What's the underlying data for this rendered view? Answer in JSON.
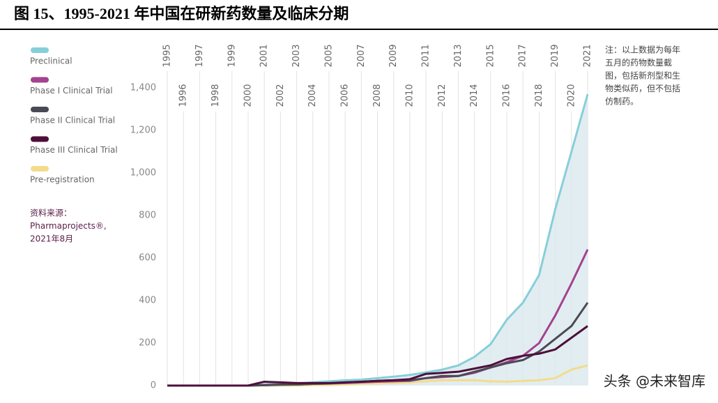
{
  "chart_data": {
    "type": "line",
    "title": "图 15、1995-2021 年中国在研新药数量及临床分期",
    "x": [
      1995,
      1996,
      1997,
      1998,
      1999,
      2000,
      2001,
      2002,
      2003,
      2004,
      2005,
      2006,
      2007,
      2008,
      2009,
      2010,
      2011,
      2012,
      2013,
      2014,
      2015,
      2016,
      2017,
      2018,
      2019,
      2020,
      2021
    ],
    "xlim": [
      1995,
      2021
    ],
    "ylim": [
      0,
      1400
    ],
    "yticks": [
      0,
      200,
      400,
      600,
      800,
      {
        "value": 1000,
        "label": "1,000"
      },
      {
        "value": 1200,
        "label": "1,200"
      },
      {
        "value": 1400,
        "label": "1,400"
      }
    ],
    "grid": true,
    "series": [
      {
        "name": "Preclinical",
        "color": "#86cfd9",
        "values": [
          0,
          0,
          0,
          0,
          0,
          0,
          5,
          8,
          10,
          15,
          20,
          25,
          28,
          35,
          42,
          50,
          62,
          75,
          95,
          135,
          195,
          310,
          390,
          520,
          830,
          1100,
          1370
        ]
      },
      {
        "name": "Phase I Clinical Trial",
        "color": "#a3428f",
        "values": [
          0,
          0,
          0,
          0,
          0,
          0,
          2,
          5,
          5,
          8,
          10,
          12,
          15,
          18,
          20,
          22,
          35,
          40,
          45,
          60,
          85,
          110,
          140,
          200,
          330,
          480,
          640
        ]
      },
      {
        "name": "Phase II Clinical Trial",
        "color": "#4a4a55",
        "values": [
          0,
          0,
          0,
          0,
          0,
          0,
          2,
          4,
          5,
          8,
          10,
          15,
          18,
          22,
          25,
          25,
          35,
          45,
          45,
          65,
          85,
          105,
          120,
          160,
          220,
          280,
          390
        ]
      },
      {
        "name": "Phase III Clinical Trial",
        "color": "#4d0f3a",
        "values": [
          0,
          0,
          0,
          0,
          0,
          0,
          18,
          15,
          12,
          12,
          12,
          15,
          18,
          22,
          25,
          30,
          55,
          60,
          65,
          80,
          95,
          125,
          140,
          150,
          170,
          225,
          280
        ]
      },
      {
        "name": "Pre-registration",
        "color": "#f2dc8c",
        "values": [
          0,
          0,
          0,
          0,
          0,
          0,
          0,
          0,
          0,
          2,
          3,
          5,
          8,
          10,
          12,
          15,
          20,
          25,
          25,
          25,
          20,
          18,
          22,
          25,
          35,
          75,
          95
        ]
      }
    ],
    "source": [
      "资料来源：",
      "Pharmaprojects®,",
      "2021年8月"
    ],
    "note": [
      "注：以上数据为每年",
      "五月的药物数量截",
      "图，包括新剂型和生",
      "物类似药，但不包括",
      "仿制药。"
    ],
    "watermark": "头条 @未来智库"
  }
}
